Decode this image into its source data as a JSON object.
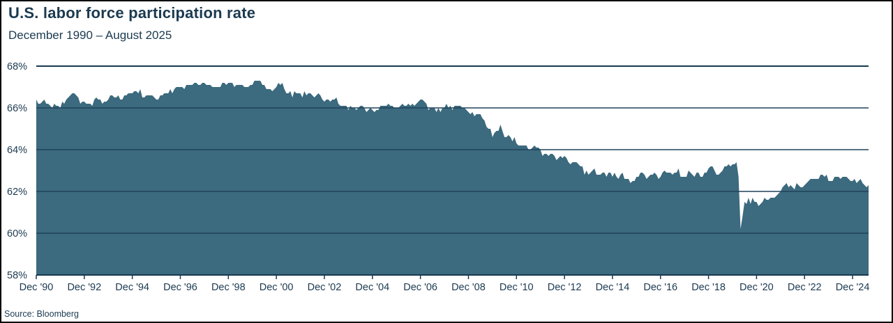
{
  "header": {
    "title": "U.S. labor force participation rate",
    "subtitle": "December 1990 – August 2025"
  },
  "footer": {
    "source": "Source: Bloomberg"
  },
  "colors": {
    "area_fill": "#3C6A7E",
    "gridline": "#1F425A",
    "axis_line": "#17394E",
    "text": "#1B3A50",
    "background": "#FFFFFF",
    "border": "#000000"
  },
  "chart_data": {
    "type": "area",
    "title": "U.S. labor force participation rate",
    "subtitle": "December 1990 – August 2025",
    "unit": "%",
    "frequency": "monthly",
    "x_start": "1990-12",
    "x_end": "2025-08",
    "ylim": [
      58,
      68
    ],
    "grid": "horizontal",
    "legend": "none",
    "yticks": [
      {
        "value": 68,
        "label": "68%"
      },
      {
        "value": 66,
        "label": "66%"
      },
      {
        "value": 64,
        "label": "64%"
      },
      {
        "value": 62,
        "label": "62%"
      },
      {
        "value": 60,
        "label": "60%"
      },
      {
        "value": 58,
        "label": "58%"
      }
    ],
    "xticks": {
      "first_month_index": 0,
      "step_months": 24,
      "labels": [
        "Dec '90",
        "Dec '92",
        "Dec '94",
        "Dec '96",
        "Dec '98",
        "Dec '00",
        "Dec '02",
        "Dec '04",
        "Dec '06",
        "Dec '08",
        "Dec '10",
        "Dec '12",
        "Dec '14",
        "Dec '16",
        "Dec '18",
        "Dec '20",
        "Dec '22",
        "Dec '24"
      ]
    },
    "series": [
      {
        "name": "U.S. labor force participation rate",
        "values": [
          66.4,
          66.2,
          66.2,
          66.3,
          66.4,
          66.2,
          66.2,
          66.1,
          66.0,
          66.2,
          66.1,
          66.1,
          66.0,
          66.3,
          66.2,
          66.4,
          66.5,
          66.6,
          66.7,
          66.7,
          66.6,
          66.5,
          66.2,
          66.3,
          66.3,
          66.2,
          66.2,
          66.2,
          66.1,
          66.4,
          66.5,
          66.4,
          66.4,
          66.2,
          66.3,
          66.3,
          66.4,
          66.6,
          66.6,
          66.5,
          66.5,
          66.6,
          66.4,
          66.4,
          66.6,
          66.6,
          66.7,
          66.7,
          66.7,
          66.8,
          66.8,
          66.7,
          66.9,
          66.5,
          66.5,
          66.6,
          66.6,
          66.6,
          66.6,
          66.5,
          66.4,
          66.4,
          66.6,
          66.6,
          66.7,
          66.7,
          66.7,
          66.9,
          66.7,
          66.9,
          67.0,
          67.0,
          67.0,
          67.0,
          66.9,
          67.1,
          67.1,
          67.1,
          67.1,
          67.2,
          67.2,
          67.1,
          67.1,
          67.2,
          67.2,
          67.1,
          67.1,
          67.1,
          67.0,
          67.0,
          67.0,
          67.0,
          67.0,
          67.2,
          67.2,
          67.1,
          67.2,
          67.2,
          67.2,
          67.0,
          67.1,
          67.1,
          67.1,
          67.1,
          67.0,
          67.0,
          67.0,
          67.1,
          67.1,
          67.3,
          67.3,
          67.3,
          67.3,
          67.1,
          67.1,
          66.9,
          66.9,
          66.9,
          66.8,
          66.9,
          67.0,
          67.2,
          67.1,
          67.2,
          66.9,
          66.7,
          66.7,
          66.8,
          66.5,
          66.8,
          66.7,
          66.7,
          66.7,
          66.5,
          66.8,
          66.6,
          66.7,
          66.7,
          66.6,
          66.5,
          66.6,
          66.7,
          66.6,
          66.4,
          66.3,
          66.4,
          66.4,
          66.3,
          66.4,
          66.4,
          66.5,
          66.2,
          66.1,
          66.1,
          66.1,
          66.1,
          65.9,
          66.1,
          66.0,
          66.0,
          65.9,
          66.0,
          66.1,
          66.1,
          66.0,
          65.8,
          65.9,
          66.0,
          65.9,
          65.8,
          65.9,
          65.9,
          66.1,
          66.1,
          66.1,
          66.1,
          66.2,
          66.1,
          66.1,
          66.0,
          66.0,
          66.0,
          66.1,
          66.2,
          66.1,
          66.1,
          66.2,
          66.1,
          66.2,
          66.1,
          66.2,
          66.3,
          66.4,
          66.4,
          66.3,
          66.2,
          65.9,
          66.0,
          66.0,
          66.0,
          65.8,
          66.0,
          65.8,
          66.0,
          66.0,
          66.2,
          66.0,
          66.1,
          65.9,
          66.1,
          66.1,
          66.1,
          66.1,
          66.0,
          66.0,
          65.9,
          65.8,
          65.7,
          65.8,
          65.6,
          65.7,
          65.7,
          65.7,
          65.5,
          65.4,
          65.1,
          65.0,
          65.0,
          64.6,
          64.8,
          64.9,
          64.9,
          65.2,
          64.9,
          64.6,
          64.6,
          64.7,
          64.6,
          64.4,
          64.6,
          64.3,
          64.2,
          64.2,
          64.2,
          64.2,
          64.2,
          64.0,
          64.0,
          64.1,
          64.2,
          64.1,
          64.1,
          64.0,
          63.7,
          63.8,
          63.8,
          63.7,
          63.8,
          63.8,
          63.7,
          63.5,
          63.6,
          63.7,
          63.6,
          63.7,
          63.6,
          63.4,
          63.3,
          63.4,
          63.4,
          63.4,
          63.3,
          63.2,
          63.2,
          62.8,
          63.0,
          62.8,
          62.9,
          63.0,
          63.1,
          62.8,
          62.8,
          62.8,
          62.9,
          62.9,
          62.7,
          62.9,
          62.9,
          62.7,
          62.9,
          62.7,
          62.6,
          62.8,
          62.9,
          62.6,
          62.6,
          62.6,
          62.4,
          62.5,
          62.5,
          62.7,
          62.7,
          62.9,
          62.9,
          62.8,
          62.6,
          62.7,
          62.8,
          62.8,
          62.9,
          62.8,
          62.6,
          62.7,
          62.9,
          63.0,
          62.9,
          62.9,
          62.9,
          62.8,
          62.9,
          62.9,
          63.1,
          62.7,
          62.7,
          62.7,
          62.7,
          63.0,
          62.9,
          62.8,
          62.7,
          62.9,
          62.9,
          62.7,
          62.7,
          62.9,
          62.9,
          63.1,
          63.2,
          63.2,
          63.0,
          62.8,
          62.8,
          62.9,
          63.0,
          63.2,
          63.2,
          63.3,
          63.2,
          63.3,
          63.3,
          63.4,
          62.7,
          60.2,
          60.8,
          61.5,
          61.4,
          61.7,
          61.4,
          61.7,
          61.5,
          61.5,
          61.3,
          61.4,
          61.5,
          61.7,
          61.6,
          61.6,
          61.7,
          61.7,
          61.7,
          61.8,
          61.9,
          62.0,
          62.2,
          62.3,
          62.4,
          62.2,
          62.3,
          62.2,
          62.1,
          62.4,
          62.3,
          62.2,
          62.2,
          62.3,
          62.4,
          62.5,
          62.6,
          62.6,
          62.6,
          62.6,
          62.6,
          62.8,
          62.8,
          62.7,
          62.8,
          62.5,
          62.5,
          62.5,
          62.7,
          62.7,
          62.7,
          62.6,
          62.7,
          62.7,
          62.7,
          62.6,
          62.5,
          62.5,
          62.6,
          62.4,
          62.5,
          62.6,
          62.4,
          62.3,
          62.2,
          62.3
        ]
      }
    ]
  }
}
